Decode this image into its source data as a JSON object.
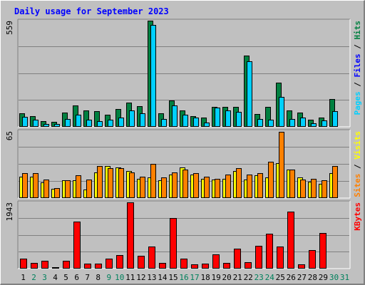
{
  "chart_data": {
    "type": "bar",
    "title": "Daily usage for September 2023",
    "categories": [
      "1",
      "2",
      "3",
      "4",
      "5",
      "6",
      "7",
      "8",
      "9",
      "10",
      "11",
      "12",
      "13",
      "14",
      "15",
      "16",
      "17",
      "18",
      "19",
      "20",
      "21",
      "22",
      "23",
      "24",
      "25",
      "26",
      "27",
      "28",
      "29",
      "30",
      "31"
    ],
    "weekend_days": [
      "2",
      "3",
      "9",
      "10",
      "16",
      "17",
      "23",
      "24",
      "30",
      "31"
    ],
    "panels": [
      {
        "name": "hits-files-pages",
        "max_label": "559",
        "ylim": [
          0,
          559
        ],
        "side_legend": [
          {
            "text": "Pages",
            "color": "#00d0ff"
          },
          {
            "text": " / ",
            "color": "#000000"
          },
          {
            "text": "Files",
            "color": "#0000ff"
          },
          {
            "text": " / ",
            "color": "#000000"
          },
          {
            "text": "Hits",
            "color": "#008040"
          }
        ],
        "series": [
          {
            "name": "Hits",
            "color": "#008040",
            "values": [
              72,
              56,
              30,
              28,
              75,
              112,
              86,
              84,
              65,
              95,
              126,
              107,
              559,
              72,
              140,
              86,
              58,
              50,
              106,
              105,
              106,
              374,
              66,
              104,
              234,
              86,
              76,
              36,
              48,
              147,
              0
            ]
          },
          {
            "name": "Pages",
            "color": "#00d0ff",
            "values": [
              51,
              36,
              16,
              16,
              41,
              62,
              36,
              31,
              36,
              49,
              86,
              73,
              536,
              40,
              111,
              64,
              48,
              24,
              100,
              86,
              80,
              346,
              43,
              36,
              156,
              43,
              48,
              17,
              32,
              82,
              0
            ]
          }
        ]
      },
      {
        "name": "visits-sites",
        "max_label": "65",
        "ylim": [
          0,
          65
        ],
        "side_legend": [
          {
            "text": "Sites",
            "color": "#ff8000"
          },
          {
            "text": " / ",
            "color": "#000000"
          },
          {
            "text": "Visits",
            "color": "#ffff00"
          }
        ],
        "series": [
          {
            "name": "Visits",
            "color": "#ffff00",
            "values": [
              21,
              21,
              15,
              9,
              17,
              17,
              8,
              25,
              31,
              30,
              26,
              19,
              20,
              17,
              23,
              30,
              23,
              19,
              18,
              19,
              26,
              18,
              22,
              20,
              34,
              28,
              20,
              16,
              14,
              24,
              0
            ]
          },
          {
            "name": "Sites",
            "color": "#ff8000",
            "values": [
              24,
              24,
              18,
              10,
              17,
              22,
              18,
              31,
              29,
              29,
              25,
              21,
              33,
              20,
              25,
              28,
              24,
              21,
              19,
              23,
              29,
              23,
              24,
              35,
              64,
              28,
              18,
              19,
              17,
              31,
              0
            ]
          }
        ]
      },
      {
        "name": "kbytes",
        "max_label": "1943",
        "ylim": [
          0,
          1943
        ],
        "side_legend": [
          {
            "text": "KBytes",
            "color": "#ff0000"
          }
        ],
        "series": [
          {
            "name": "KBytes",
            "color": "#ff0000",
            "values": [
              290,
              158,
              233,
              44,
              233,
              1382,
              137,
              137,
              289,
              405,
              1943,
              366,
              646,
              171,
              1474,
              297,
              130,
              149,
              428,
              166,
              580,
              180,
              661,
              1031,
              645,
              1663,
              125,
              553,
              1049,
              0,
              0
            ]
          }
        ]
      }
    ]
  }
}
